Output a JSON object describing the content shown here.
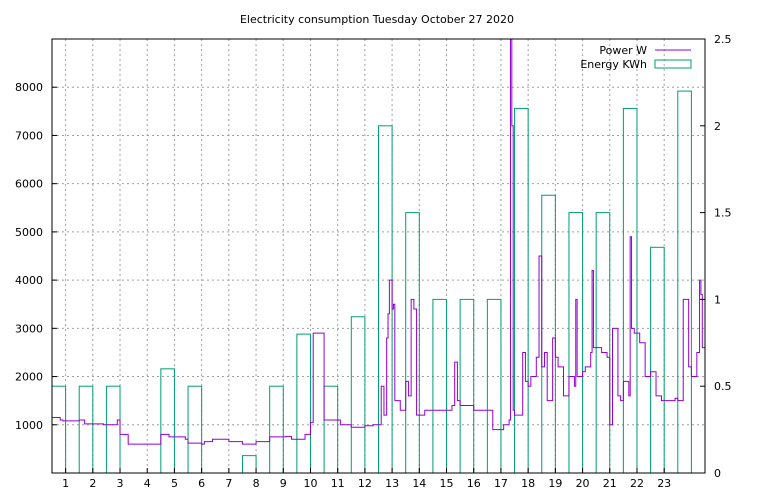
{
  "chart_data": {
    "type": "bar+line",
    "title": "Electricity consumption Tuesday October 27 2020",
    "grid": true,
    "legend_placement": "top-right",
    "legend": [
      {
        "label": "Power W",
        "kind": "line",
        "color": "#9400d3"
      },
      {
        "label": "Energy KWh",
        "kind": "box",
        "color": "#009e73"
      }
    ],
    "x_ticks": [
      "1",
      "2",
      "3",
      "4",
      "5",
      "6",
      "7",
      "8",
      "9",
      "10",
      "11",
      "12",
      "13",
      "14",
      "15",
      "16",
      "17",
      "18",
      "19",
      "20",
      "21",
      "22",
      "23"
    ],
    "x_range": [
      0,
      24
    ],
    "y_left_ticks": [
      "1000",
      "2000",
      "3000",
      "4000",
      "5000",
      "6000",
      "7000",
      "8000"
    ],
    "y_left_range": [
      0,
      9000
    ],
    "y_right_ticks": [
      "0",
      "0.5",
      "1",
      "1.5",
      "2",
      "2.5"
    ],
    "y_right_range": [
      0,
      2.5
    ],
    "energy_series": {
      "name": "Energy KWh",
      "hours": [
        0,
        1,
        2,
        3,
        4,
        5,
        6,
        7,
        8,
        9,
        10,
        11,
        12,
        13,
        14,
        15,
        16,
        17,
        18,
        19,
        20,
        21,
        22,
        23
      ],
      "values": [
        0.5,
        0.5,
        0.5,
        0,
        0.6,
        0.5,
        0,
        0.1,
        0.5,
        0.8,
        0.5,
        0.9,
        2.0,
        1.5,
        1.0,
        1.0,
        1.0,
        2.1,
        1.6,
        1.5,
        1.5,
        2.1,
        1.3,
        2.2
      ]
    },
    "power_series": {
      "name": "Power W",
      "t": [
        0,
        0.3,
        0.4,
        1.0,
        1.2,
        1.9,
        2.4,
        2.5,
        2.8,
        3.5,
        4.0,
        4.3,
        4.9,
        5.0,
        5.5,
        5.6,
        5.9,
        6.2,
        6.5,
        7.0,
        7.5,
        8.0,
        8.6,
        8.8,
        9.0,
        9.3,
        9.5,
        9.6,
        10.0,
        10.6,
        11.0,
        11.5,
        11.8,
        12.1,
        12.2,
        12.3,
        12.35,
        12.4,
        12.5,
        12.55,
        12.6,
        12.8,
        13.0,
        13.1,
        13.2,
        13.3,
        13.4,
        13.5,
        13.7,
        13.9,
        14.5,
        14.7,
        14.8,
        14.9,
        15.0,
        15.2,
        15.5,
        16.0,
        16.2,
        16.4,
        16.6,
        16.8,
        16.85,
        16.9,
        16.95,
        17.0,
        17.3,
        17.4,
        17.5,
        17.6,
        17.8,
        17.9,
        18.0,
        18.1,
        18.2,
        18.4,
        18.5,
        18.6,
        18.8,
        19.0,
        19.2,
        19.25,
        19.3,
        19.5,
        19.6,
        19.8,
        19.85,
        19.9,
        20.2,
        20.4,
        20.5,
        20.6,
        20.8,
        20.9,
        21.0,
        21.2,
        21.25,
        21.3,
        21.4,
        21.6,
        21.8,
        22.0,
        22.2,
        22.4,
        22.5,
        22.9,
        23.0,
        23.1,
        23.2,
        23.4,
        23.5,
        23.6,
        23.7,
        23.8,
        23.85,
        23.9,
        24.0
      ],
      "v": [
        1150,
        1100,
        1080,
        1100,
        1020,
        1000,
        1100,
        800,
        600,
        600,
        800,
        750,
        700,
        620,
        600,
        650,
        700,
        700,
        650,
        600,
        650,
        750,
        760,
        700,
        700,
        800,
        1050,
        2900,
        1100,
        1000,
        950,
        980,
        1000,
        1800,
        1200,
        2800,
        3300,
        4000,
        3400,
        3500,
        1500,
        1300,
        1900,
        1600,
        3600,
        3400,
        1200,
        1200,
        1300,
        1300,
        1300,
        1400,
        2300,
        1500,
        1400,
        1400,
        1300,
        1300,
        900,
        900,
        1000,
        1100,
        9000,
        7200,
        1300,
        1200,
        2500,
        1900,
        1800,
        2000,
        2400,
        4500,
        2200,
        2500,
        1500,
        2800,
        2400,
        2200,
        1600,
        2000,
        1800,
        3600,
        2000,
        2100,
        2200,
        2500,
        4200,
        2600,
        2500,
        2400,
        1000,
        3000,
        1600,
        1500,
        1900,
        1600,
        4900,
        3000,
        2900,
        2700,
        2000,
        2100,
        1600,
        1500,
        1500,
        1550,
        1500,
        1500,
        3600,
        2200,
        2000,
        2000,
        2500,
        4000,
        3700,
        2600,
        4000,
        2000
      ]
    }
  }
}
